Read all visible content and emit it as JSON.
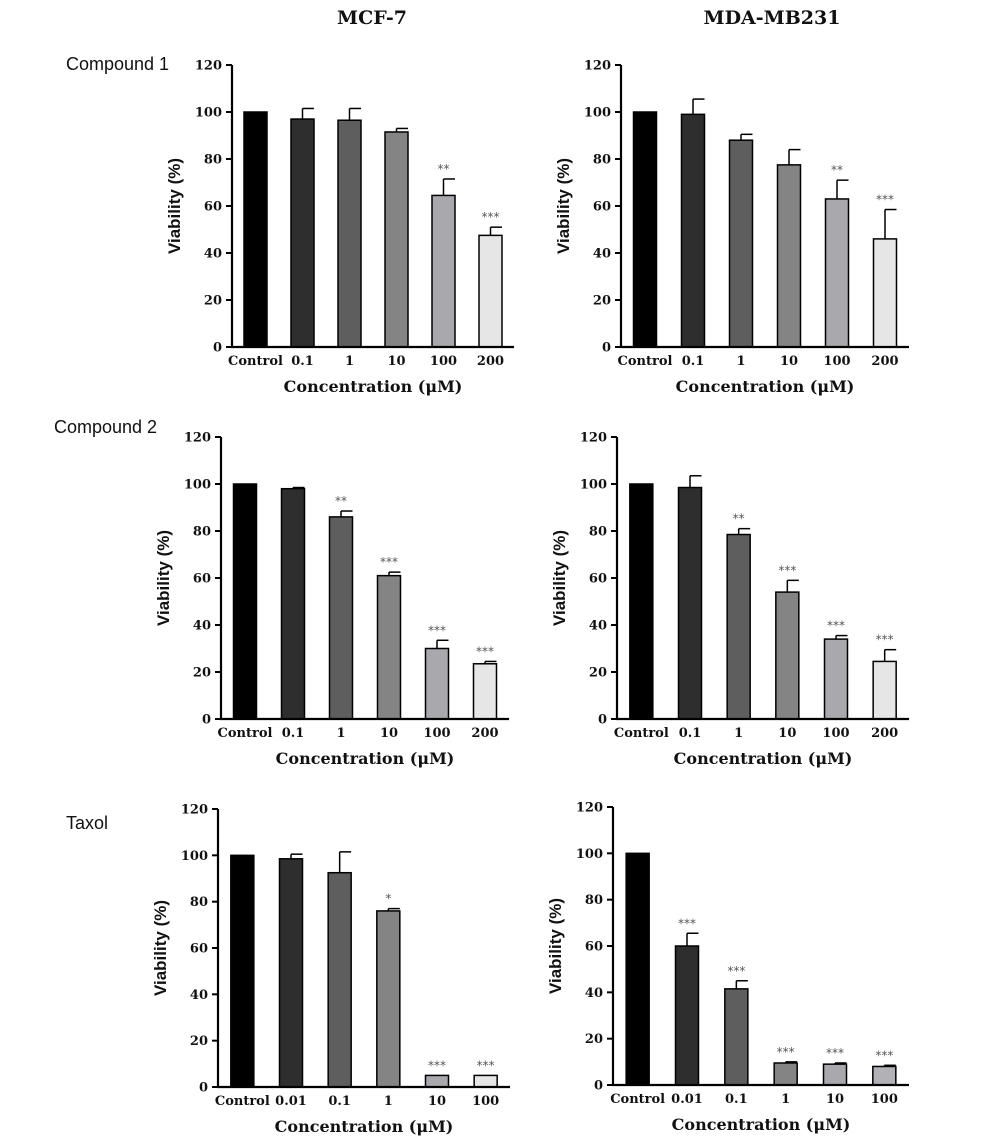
{
  "column_titles": [
    "MCF-7",
    "MDA-MB231"
  ],
  "row_labels": [
    "Compound 1",
    "Compound 2",
    "Taxol"
  ],
  "chart_data": [
    {
      "type": "bar",
      "row": 0,
      "col": 0,
      "xlabel": "Concentration (μM)",
      "ylabel": "Viability (%)",
      "ylim": [
        0,
        120
      ],
      "yticks": [
        0,
        20,
        40,
        60,
        80,
        100,
        120
      ],
      "categories": [
        "Control",
        "0.1",
        "1",
        "10",
        "100",
        "200"
      ],
      "values": [
        100,
        97,
        96.5,
        91.5,
        64.5,
        47.5
      ],
      "errors": [
        0,
        4.5,
        5,
        1.5,
        7,
        3.5
      ],
      "significance": [
        "",
        "",
        "",
        "",
        "**",
        "***"
      ]
    },
    {
      "type": "bar",
      "row": 0,
      "col": 1,
      "xlabel": "Concentration (μM)",
      "ylabel": "Viability (%)",
      "ylim": [
        0,
        120
      ],
      "yticks": [
        0,
        20,
        40,
        60,
        80,
        100,
        120
      ],
      "categories": [
        "Control",
        "0.1",
        "1",
        "10",
        "100",
        "200"
      ],
      "values": [
        100,
        99,
        88,
        77.5,
        63,
        46
      ],
      "errors": [
        0,
        6.5,
        2.5,
        6.5,
        8,
        12.5
      ],
      "significance": [
        "",
        "",
        "",
        "",
        "**",
        "***"
      ]
    },
    {
      "type": "bar",
      "row": 1,
      "col": 0,
      "xlabel": "Concentration (μM)",
      "ylabel": "Viability (%)",
      "ylim": [
        0,
        120
      ],
      "yticks": [
        0,
        20,
        40,
        60,
        80,
        100,
        120
      ],
      "categories": [
        "Control",
        "0.1",
        "1",
        "10",
        "100",
        "200"
      ],
      "values": [
        100,
        98,
        86,
        61,
        30,
        23.5
      ],
      "errors": [
        0,
        0.5,
        2.5,
        1.5,
        3.5,
        1
      ],
      "significance": [
        "",
        "",
        "**",
        "***",
        "***",
        "***"
      ]
    },
    {
      "type": "bar",
      "row": 1,
      "col": 1,
      "xlabel": "Concentration (μM)",
      "ylabel": "Viability (%)",
      "ylim": [
        0,
        120
      ],
      "yticks": [
        0,
        20,
        40,
        60,
        80,
        100,
        120
      ],
      "categories": [
        "Control",
        "0.1",
        "1",
        "10",
        "100",
        "200"
      ],
      "values": [
        100,
        98.5,
        78.5,
        54,
        34,
        24.5
      ],
      "errors": [
        0,
        5,
        2.5,
        5,
        1.5,
        5
      ],
      "significance": [
        "",
        "",
        "**",
        "***",
        "***",
        "***"
      ]
    },
    {
      "type": "bar",
      "row": 2,
      "col": 0,
      "xlabel": "Concentration (μM)",
      "ylabel": "Viability (%)",
      "ylim": [
        0,
        120
      ],
      "yticks": [
        0,
        20,
        40,
        60,
        80,
        100,
        120
      ],
      "categories": [
        "Control",
        "0.01",
        "0.1",
        "1",
        "10",
        "100"
      ],
      "values": [
        100,
        98.5,
        92.5,
        76,
        5,
        5
      ],
      "errors": [
        0,
        2,
        9,
        1,
        0,
        0
      ],
      "significance": [
        "",
        "",
        "",
        "*",
        "***",
        "***"
      ]
    },
    {
      "type": "bar",
      "row": 2,
      "col": 1,
      "xlabel": "Concentration (μM)",
      "ylabel": "Viability (%)",
      "ylim": [
        0,
        120
      ],
      "yticks": [
        0,
        20,
        40,
        60,
        80,
        100,
        120
      ],
      "categories": [
        "Control",
        "0.01",
        "0.1",
        "1",
        "10",
        "100"
      ],
      "values": [
        100,
        60,
        41.5,
        9.5,
        9,
        8
      ],
      "errors": [
        0,
        5.5,
        3.5,
        0.5,
        0.5,
        0.5
      ],
      "significance": [
        "",
        "***",
        "***",
        "***",
        "***",
        "***"
      ]
    }
  ],
  "colors": {
    "bar_fills": [
      "#000000",
      "#2e2e2e",
      "#5e5e5e",
      "#848484",
      "#a9a9ad",
      "#e6e6e6"
    ],
    "taxol_mdamb231_bar_fills": [
      "#000000",
      "#2e2e2e",
      "#5e5e5e",
      "#848484",
      "#a9a9ad",
      "#b2b2b6"
    ],
    "axis": "#000000",
    "significance": "#555555"
  }
}
